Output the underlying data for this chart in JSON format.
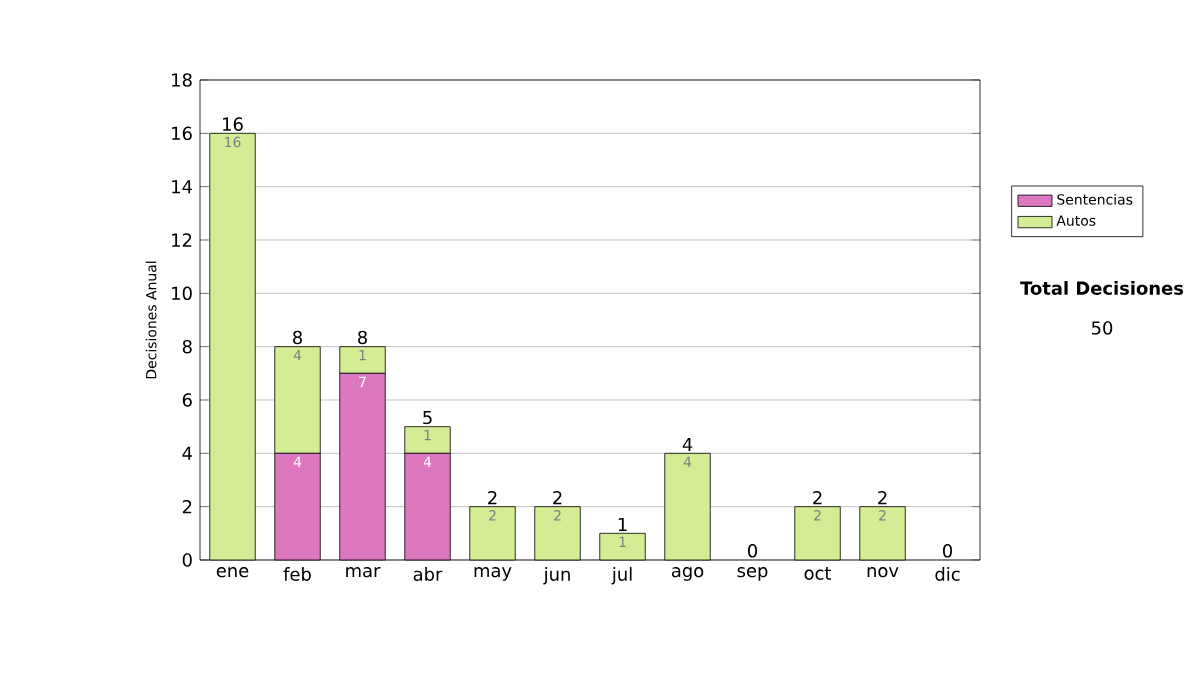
{
  "chart_data": {
    "type": "bar",
    "stacked": true,
    "ylabel": "Decisiones Anual",
    "categories": [
      "ene",
      "feb",
      "mar",
      "abr",
      "may",
      "jun",
      "jul",
      "ago",
      "sep",
      "oct",
      "nov",
      "dic"
    ],
    "series": [
      {
        "name": "Sentencias",
        "color": "#dd77c0",
        "values": [
          0,
          4,
          7,
          4,
          0,
          0,
          0,
          0,
          0,
          0,
          0,
          0
        ],
        "value_labels": [
          null,
          "4",
          "7",
          "4",
          null,
          null,
          null,
          null,
          null,
          null,
          null,
          null
        ]
      },
      {
        "name": "Autos",
        "color": "#d4ec94",
        "values": [
          16,
          4,
          1,
          1,
          2,
          2,
          1,
          4,
          0,
          2,
          2,
          0
        ],
        "value_labels": [
          "16",
          "4",
          "1",
          "1",
          "2",
          "2",
          "1",
          "4",
          null,
          "2",
          "2",
          null
        ]
      }
    ],
    "totals": [
      "16",
      "8",
      "8",
      "5",
      "2",
      "2",
      "1",
      "4",
      "0",
      "2",
      "2",
      "0"
    ],
    "ylim": [
      0,
      18
    ],
    "yticks": [
      0,
      2,
      4,
      6,
      8,
      10,
      12,
      14,
      16,
      18
    ],
    "grid": "y",
    "legend": "right",
    "annotations": [
      "**Total Decisiones**",
      "50"
    ]
  }
}
